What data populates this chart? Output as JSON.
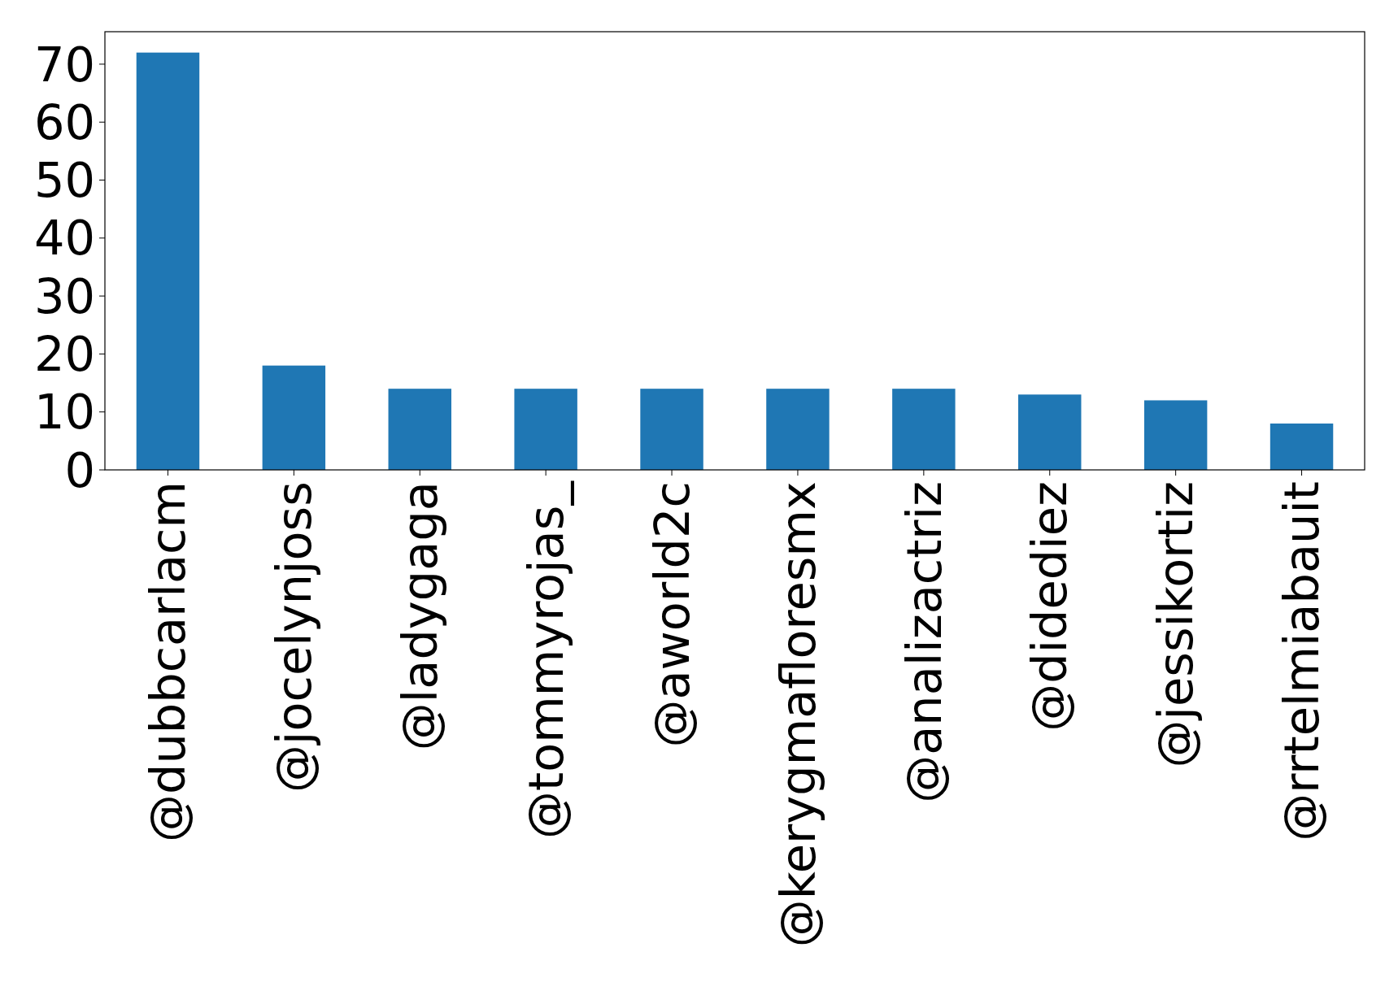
{
  "chart_data": {
    "type": "bar",
    "categories": [
      "@dubbcarlacm",
      "@jocelynjoss",
      "@ladygaga",
      "@tommyrojas_",
      "@aworld2c",
      "@kerygmafloresmx",
      "@analizactriz",
      "@didediez",
      "@jessikortiz",
      "@rrtelmiabauit"
    ],
    "values": [
      72,
      18,
      14,
      14,
      14,
      14,
      14,
      13,
      12,
      8
    ],
    "color": "#1f77b4",
    "ylim": [
      0,
      75.6
    ],
    "yticks": [
      0,
      10,
      20,
      30,
      40,
      50,
      60,
      70
    ],
    "grid": false
  }
}
